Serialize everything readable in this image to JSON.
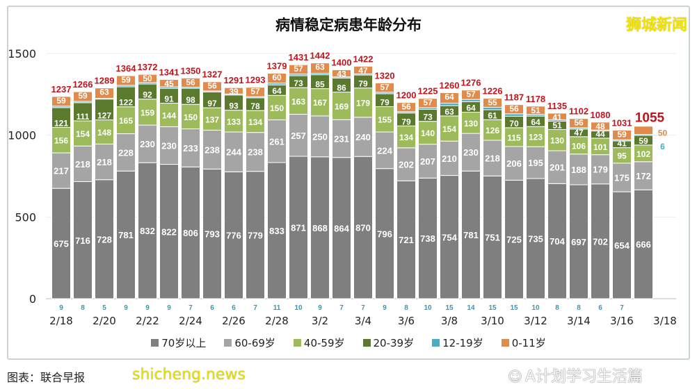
{
  "chart_data": {
    "type": "bar",
    "stacked": true,
    "title": "病情稳定病患年龄分布",
    "categories": [
      "2/18",
      "2/19",
      "2/20",
      "2/21",
      "2/22",
      "2/23",
      "2/24",
      "2/25",
      "2/26",
      "2/27",
      "2/28",
      "3/1",
      "3/2",
      "3/3",
      "3/4",
      "3/5",
      "3/6",
      "3/7",
      "3/8",
      "3/9",
      "3/10",
      "3/11",
      "3/12",
      "3/13",
      "3/14",
      "3/15",
      "3/16",
      "3/17"
    ],
    "x_tick_labels": [
      "2/18",
      "2/20",
      "2/22",
      "2/24",
      "2/26",
      "2/28",
      "3/2",
      "3/4",
      "3/6",
      "3/8",
      "3/10",
      "3/12",
      "3/14",
      "3/16",
      "3/18"
    ],
    "y_ticks": [
      0,
      500,
      1000,
      1500
    ],
    "ylim": [
      0,
      1500
    ],
    "grid": true,
    "legend_position": "bottom",
    "series": [
      {
        "name": "70岁以上",
        "color": "#7f7f7f",
        "values": [
          675,
          716,
          728,
          781,
          832,
          822,
          806,
          793,
          776,
          779,
          833,
          871,
          868,
          864,
          870,
          796,
          721,
          738,
          754,
          781,
          751,
          725,
          735,
          704,
          697,
          702,
          654,
          666
        ]
      },
      {
        "name": "60-69岁",
        "color": "#a5a5a5",
        "values": [
          217,
          218,
          218,
          228,
          230,
          230,
          233,
          238,
          244,
          238,
          261,
          257,
          250,
          231,
          240,
          224,
          202,
          207,
          210,
          230,
          218,
          206,
          195,
          201,
          188,
          179,
          175,
          172
        ]
      },
      {
        "name": "40-59岁",
        "color": "#9dbb5a",
        "values": [
          156,
          154,
          148,
          165,
          159,
          144,
          150,
          137,
          133,
          134,
          150,
          163,
          167,
          169,
          179,
          155,
          134,
          140,
          154,
          130,
          126,
          115,
          123,
          130,
          106,
          101,
          95,
          102
        ]
      },
      {
        "name": "20-39岁",
        "color": "#5b7a2e",
        "values": [
          121,
          111,
          127,
          122,
          92,
          91,
          98,
          97,
          93,
          78,
          64,
          73,
          85,
          86,
          79,
          79,
          79,
          73,
          63,
          64,
          61,
          70,
          64,
          51,
          47,
          44,
          41,
          59
        ]
      },
      {
        "name": "12-19岁",
        "color": "#4bacc6",
        "values": [
          9,
          8,
          5,
          9,
          9,
          9,
          7,
          6,
          6,
          7,
          11,
          10,
          9,
          7,
          7,
          9,
          8,
          10,
          15,
          14,
          15,
          15,
          10,
          8,
          8,
          6,
          7,
          6
        ]
      },
      {
        "name": "0-11岁",
        "color": "#e08a4c",
        "values": [
          59,
          59,
          63,
          59,
          50,
          45,
          56,
          56,
          39,
          57,
          60,
          57,
          63,
          43,
          47,
          57,
          56,
          57,
          64,
          57,
          55,
          56,
          51,
          41,
          56,
          48,
          59,
          50
        ]
      }
    ],
    "totals": [
      1237,
      1266,
      1289,
      1364,
      1372,
      1341,
      1350,
      1327,
      1291,
      1293,
      1379,
      1431,
      1442,
      1400,
      1422,
      1320,
      1200,
      1225,
      1260,
      1276,
      1226,
      1187,
      1178,
      1135,
      1102,
      1080,
      1031,
      1055
    ],
    "total_label_color": "#c0141c"
  },
  "brand": "狮城新闻",
  "source": "图表：联合早报",
  "watermark_site": "shicheng.news",
  "watermark_account": "A计划学习生活篇"
}
